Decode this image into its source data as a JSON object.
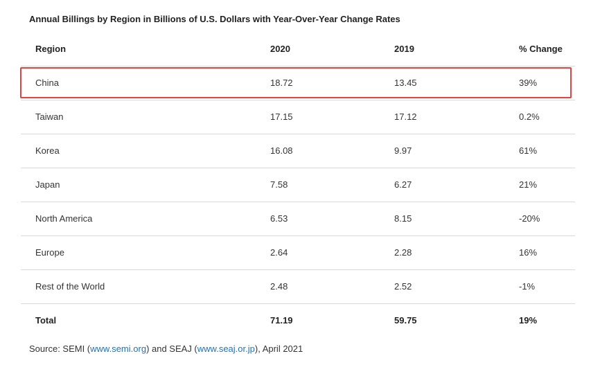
{
  "chart_data": {
    "type": "table",
    "title": "Annual Billings by Region in Billions of U.S. Dollars with Year-Over-Year Change Rates",
    "columns": [
      "Region",
      "2020",
      "2019",
      "% Change"
    ],
    "rows": [
      [
        "China",
        "18.72",
        "13.45",
        "39%"
      ],
      [
        "Taiwan",
        "17.15",
        "17.12",
        "0.2%"
      ],
      [
        "Korea",
        "16.08",
        "9.97",
        "61%"
      ],
      [
        "Japan",
        "7.58",
        "6.27",
        "21%"
      ],
      [
        "North America",
        "6.53",
        "8.15",
        "-20%"
      ],
      [
        "Europe",
        "2.64",
        "2.28",
        "16%"
      ],
      [
        "Rest of the World",
        "2.48",
        "2.52",
        "-1%"
      ]
    ],
    "total": [
      "Total",
      "71.19",
      "59.75",
      "19%"
    ],
    "highlighted_row": "China"
  },
  "source": {
    "prefix": "Source: SEMI (",
    "link1": "www.semi.org",
    "middle": ") and SEAJ (",
    "link2": "www.seaj.or.jp",
    "suffix": "), April 2021"
  },
  "colors": {
    "highlight_border": "#e8403a",
    "link": "#1a73c8"
  }
}
